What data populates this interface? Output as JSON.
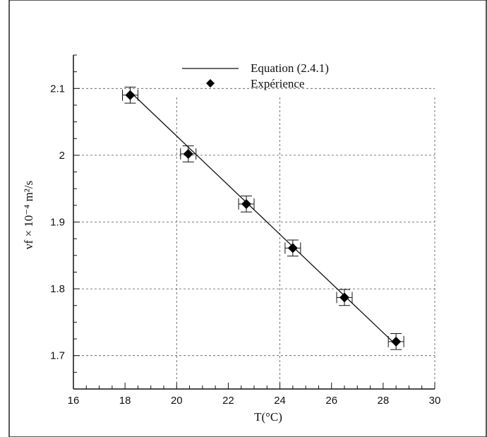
{
  "chart_data": {
    "type": "scatter",
    "xlabel": "T(°C)",
    "ylabel": "νf × 10⁻⁴ m²/s",
    "xlim": [
      16,
      30
    ],
    "ylim": [
      1.65,
      2.15
    ],
    "x_ticks": [
      "16",
      "18",
      "20",
      "22",
      "24",
      "26",
      "28",
      "30"
    ],
    "y_ticks": [
      "1.7",
      "1.8",
      "1.9",
      "2",
      "2.1"
    ],
    "grid": "dashed",
    "legend_position": "top-center",
    "series": [
      {
        "name": "Equation (2.4.1)",
        "kind": "line",
        "x": [
          18.2,
          28.5
        ],
        "y": [
          2.095,
          1.716
        ]
      },
      {
        "name": "Expérience",
        "kind": "points-with-error-bars",
        "x": [
          18.2,
          20.45,
          22.7,
          24.5,
          26.5,
          28.5
        ],
        "y": [
          2.09,
          2.002,
          1.927,
          1.861,
          1.787,
          1.721
        ],
        "x_error": 0.3,
        "y_error": 0.012
      }
    ]
  }
}
